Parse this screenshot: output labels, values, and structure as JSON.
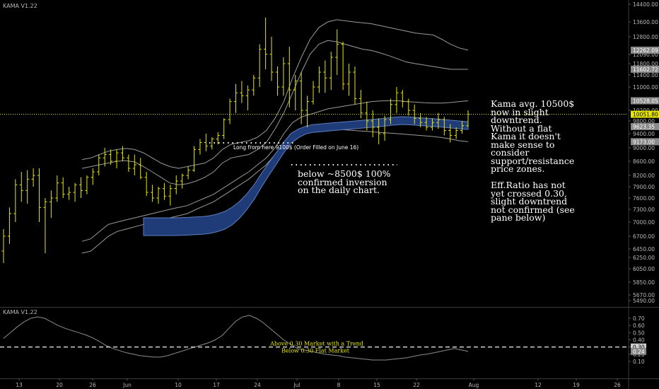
{
  "chart_data": {
    "type": "ohlc",
    "indicator": "KAMA V1.22",
    "price_pane": {
      "title": "KAMA V1.22",
      "y_axis_ticks": [
        14400,
        13600,
        12800,
        12090,
        11800,
        11400,
        11000,
        10200,
        9800,
        9400,
        9000,
        8600,
        8200,
        7900,
        7600,
        7300,
        7000,
        6700,
        6450,
        6250,
        6050,
        5850,
        5670,
        5490
      ],
      "y_axis_tick_labels": [
        "14400.00",
        "13600.00",
        "12800.00",
        "12090.00",
        "11800.00",
        "11400.00",
        "11000.00",
        "10200.00",
        "9800.00",
        "9400.00",
        "9000.00",
        "8600.00",
        "8200.00",
        "7900.00",
        "7600.00",
        "7300.00",
        "7000.00",
        "6700.00",
        "6450.00",
        "6250.00",
        "6050.00",
        "5850.00",
        "5670.00",
        "5490.00"
      ],
      "price_labels": [
        {
          "value": 12262.09,
          "text": "12262.09"
        },
        {
          "value": 11602.72,
          "text": "11602.72"
        },
        {
          "value": 10528.05,
          "text": "10528.05"
        },
        {
          "value": 10051.8,
          "text": "10051.80"
        },
        {
          "value": 9623.35,
          "text": "9623.35"
        },
        {
          "value": 9173.0,
          "text": "9173.00"
        }
      ],
      "current_price": 10051.8,
      "ohlc": [
        [
          6400,
          6850,
          6150,
          6700
        ],
        [
          6700,
          7350,
          6550,
          7200
        ],
        [
          7200,
          8100,
          7000,
          7950
        ],
        [
          7950,
          8300,
          7500,
          7800
        ],
        [
          7800,
          8350,
          7450,
          8100
        ],
        [
          8100,
          8400,
          7900,
          8200
        ],
        [
          8200,
          8400,
          7000,
          7350
        ],
        [
          7350,
          7600,
          6350,
          7500
        ],
        [
          7500,
          7800,
          7100,
          7600
        ],
        [
          7600,
          8200,
          7500,
          8000
        ],
        [
          8000,
          8150,
          7600,
          7700
        ],
        [
          7700,
          7900,
          7550,
          7750
        ],
        [
          7750,
          8000,
          7500,
          7950
        ],
        [
          7950,
          8150,
          7600,
          7800
        ],
        [
          7800,
          8200,
          7700,
          8150
        ],
        [
          8150,
          8400,
          7950,
          8300
        ],
        [
          8300,
          8800,
          8200,
          8700
        ],
        [
          8700,
          9000,
          8450,
          8800
        ],
        [
          8800,
          8950,
          8500,
          8600
        ],
        [
          8600,
          8950,
          8400,
          8850
        ],
        [
          8850,
          9050,
          8600,
          8700
        ],
        [
          8700,
          8800,
          8300,
          8400
        ],
        [
          8400,
          8800,
          8200,
          8500
        ],
        [
          8500,
          8700,
          8100,
          8150
        ],
        [
          8150,
          8300,
          7650,
          7750
        ],
        [
          7750,
          7950,
          7500,
          7600
        ],
        [
          7600,
          7900,
          7450,
          7850
        ],
        [
          7850,
          8000,
          7550,
          7650
        ],
        [
          7650,
          7950,
          7400,
          7850
        ],
        [
          7850,
          8200,
          7700,
          8050
        ],
        [
          8050,
          8250,
          7850,
          8200
        ],
        [
          8200,
          8450,
          8100,
          8350
        ],
        [
          8350,
          9050,
          8300,
          8950
        ],
        [
          8950,
          9250,
          8800,
          9150
        ],
        [
          9150,
          9400,
          8900,
          9050
        ],
        [
          9050,
          9300,
          8950,
          9250
        ],
        [
          9250,
          9450,
          9100,
          9350
        ],
        [
          9350,
          9900,
          9250,
          9850
        ],
        [
          9850,
          10600,
          9700,
          10500
        ],
        [
          10500,
          11100,
          10100,
          10800
        ],
        [
          10800,
          11200,
          10450,
          10700
        ],
        [
          10700,
          11050,
          10200,
          10900
        ],
        [
          10900,
          11400,
          10700,
          11300
        ],
        [
          11300,
          12500,
          11000,
          12300
        ],
        [
          12300,
          13800,
          11600,
          12100
        ],
        [
          12100,
          12800,
          11200,
          11500
        ],
        [
          11500,
          11700,
          10700,
          11000
        ],
        [
          11000,
          12000,
          10700,
          11800
        ],
        [
          11800,
          12400,
          10300,
          10900
        ],
        [
          10900,
          11400,
          10200,
          11200
        ],
        [
          11200,
          11500,
          9700,
          10200
        ],
        [
          10200,
          10700,
          9600,
          10500
        ],
        [
          10500,
          11200,
          10400,
          11000
        ],
        [
          11000,
          11700,
          10800,
          11500
        ],
        [
          11500,
          11900,
          10800,
          11300
        ],
        [
          11300,
          12200,
          10900,
          12000
        ],
        [
          12000,
          13200,
          11400,
          12500
        ],
        [
          12500,
          12600,
          10900,
          11100
        ],
        [
          11100,
          11800,
          10700,
          11500
        ],
        [
          11500,
          11700,
          10400,
          10600
        ],
        [
          10600,
          10900,
          9900,
          10100
        ],
        [
          10100,
          10500,
          9500,
          9800
        ],
        [
          9800,
          10200,
          9300,
          9600
        ],
        [
          9600,
          9900,
          9100,
          9400
        ],
        [
          9400,
          10000,
          9200,
          9850
        ],
        [
          9850,
          10600,
          9700,
          10400
        ],
        [
          10400,
          11000,
          10100,
          10800
        ],
        [
          10800,
          10900,
          10300,
          10500
        ],
        [
          10500,
          10600,
          10000,
          10200
        ],
        [
          10200,
          10400,
          9700,
          9900
        ],
        [
          9900,
          10100,
          9600,
          9750
        ],
        [
          9750,
          9950,
          9500,
          9600
        ],
        [
          9600,
          9900,
          9500,
          9750
        ],
        [
          9750,
          10100,
          9550,
          9850
        ],
        [
          9850,
          9950,
          9350,
          9500
        ],
        [
          9500,
          9700,
          9150,
          9350
        ],
        [
          9350,
          9600,
          9250,
          9500
        ],
        [
          9500,
          9800,
          9400,
          9650
        ],
        [
          9650,
          10200,
          9600,
          10051.8
        ]
      ],
      "kama": [
        7050,
        7050,
        7050,
        7050,
        7050,
        7055,
        7060,
        7070,
        7080,
        7100,
        7140,
        7200,
        7300,
        7450,
        7650,
        7900,
        8200,
        8500,
        8800,
        9100,
        9350,
        9480,
        9570,
        9620,
        9640,
        9660,
        9680,
        9700,
        9720,
        9740,
        9760,
        9780,
        9800,
        9830,
        9860,
        9880,
        9870,
        9850,
        9830,
        9810,
        9790,
        9770,
        9750,
        9730,
        9710
      ],
      "kama_offset_base": 7200,
      "kama_offset": [
        7050,
        7050,
        7050,
        7050,
        7050,
        7055,
        7060,
        7070,
        7080,
        7100,
        7140,
        7200,
        7300,
        7450,
        7650,
        7900,
        8200,
        8500,
        8800,
        9100,
        9350,
        9480,
        9570,
        9620,
        9640,
        9660,
        9680,
        9700,
        9720,
        9740,
        9760,
        9780,
        9800,
        9830,
        9860,
        9880,
        9870,
        9850,
        9830,
        9810,
        9790,
        9770,
        9750,
        9730,
        9710
      ],
      "band_upper_outer": [
        8650,
        8700,
        8800,
        8900,
        8950,
        8980,
        8950,
        8850,
        8700,
        8550,
        8450,
        8400,
        8450,
        8500,
        8550,
        8700,
        8950,
        9100,
        9150,
        9200,
        9300,
        9500,
        9900,
        10500,
        11300,
        12000,
        12700,
        13300,
        13600,
        13700,
        13650,
        13600,
        13550,
        13500,
        13400,
        13300,
        13200,
        13100,
        13000,
        12950,
        12900,
        12700,
        12500,
        12350,
        12262
      ],
      "band_upper_inner": [
        8400,
        8450,
        8500,
        8550,
        8600,
        8620,
        8580,
        8450,
        8300,
        8150,
        8000,
        7950,
        7980,
        8050,
        8150,
        8300,
        8550,
        8700,
        8750,
        8800,
        8950,
        9150,
        9550,
        10100,
        10800,
        11500,
        12100,
        12500,
        12650,
        12600,
        12500,
        12400,
        12300,
        12250,
        12150,
        12050,
        11950,
        11850,
        11800,
        11750,
        11700,
        11650,
        11600,
        11600,
        11600
      ],
      "band_lower_inner": [
        6600,
        6650,
        6800,
        6950,
        7000,
        7050,
        7100,
        7150,
        7200,
        7250,
        7300,
        7350,
        7400,
        7500,
        7600,
        7700,
        7850,
        8000,
        8150,
        8300,
        8500,
        8700,
        9000,
        9400,
        9750,
        9950,
        10050,
        10150,
        10250,
        10300,
        10350,
        10400,
        10450,
        10500,
        10520,
        10530,
        10530,
        10500,
        10480,
        10460,
        10450,
        10450,
        10470,
        10500,
        10528
      ],
      "band_lower_outer": [
        6350,
        6400,
        6550,
        6700,
        6800,
        6850,
        6900,
        6950,
        7000,
        7050,
        7100,
        7150,
        7200,
        7300,
        7400,
        7500,
        7650,
        7800,
        7950,
        8100,
        8300,
        8500,
        8800,
        9100,
        9400,
        9550,
        9600,
        9580,
        9560,
        9540,
        9520,
        9500,
        9480,
        9460,
        9440,
        9420,
        9400,
        9380,
        9360,
        9340,
        9320,
        9290,
        9250,
        9200,
        9173
      ]
    },
    "indicator_pane": {
      "title": "KAMA V1.22",
      "y_axis_ticks": [
        0.7,
        0.6,
        0.5,
        0.4,
        0.3,
        0.2,
        0.1
      ],
      "y_axis_tick_labels": [
        "0.70",
        "0.60",
        "0.50",
        "0.40",
        "0.30",
        "0.20",
        "0.10"
      ],
      "threshold": 0.3,
      "threshold_label": "0.30",
      "current_value": 0.24,
      "current_value_label": "0.24",
      "threshold_text_above": "Above 0.30 Market with a Trend",
      "threshold_text_below": "Below 0.30 Flat Market",
      "efficiency_ratio": [
        0.42,
        0.5,
        0.58,
        0.65,
        0.7,
        0.72,
        0.7,
        0.65,
        0.6,
        0.56,
        0.53,
        0.5,
        0.47,
        0.43,
        0.38,
        0.32,
        0.28,
        0.25,
        0.22,
        0.2,
        0.18,
        0.17,
        0.16,
        0.16,
        0.18,
        0.21,
        0.24,
        0.27,
        0.3,
        0.33,
        0.36,
        0.4,
        0.46,
        0.56,
        0.66,
        0.72,
        0.74,
        0.7,
        0.64,
        0.56,
        0.48,
        0.4,
        0.34,
        0.28,
        0.26,
        0.24,
        0.22,
        0.2,
        0.19,
        0.18,
        0.16,
        0.15,
        0.14,
        0.13,
        0.12,
        0.12,
        0.12,
        0.13,
        0.14,
        0.15,
        0.17,
        0.19,
        0.2,
        0.22,
        0.24,
        0.26,
        0.28,
        0.26,
        0.24
      ]
    },
    "x_axis_labels": [
      "13",
      "20",
      "26",
      "Jun",
      "10",
      "17",
      "24",
      "Jul",
      "8",
      "15",
      "22",
      "Aug",
      "12",
      "19",
      "26"
    ],
    "annotations": [
      {
        "name": "entry-note",
        "text": "Long from here 9100$ (Order Filled on June 16)",
        "price": 9100
      },
      {
        "name": "inversion-note",
        "text": "below ~8500$ 100%\nconfirmed inversion\non the daily chart.",
        "price": 8500
      },
      {
        "name": "kama-note",
        "text": "Kama avg. 10500$\nnow in slight\ndowntrend.\nWithout a flat\nKama it doesn't\nmake sense to\nconsider\nsupport/resistance\nprice zones.\n\nEff.Ratio has not\nyet crossed 0.30,\nslight downtrend\nnot confirmed (see\npane below)"
      }
    ],
    "grid": false,
    "colors": {
      "background": "#000000",
      "bars": "#e6e600",
      "bands": "#9a9a9a",
      "kama_fill": "#1f3c78",
      "current_price_line": "#e6e600",
      "threshold_line": "#d0d0d0",
      "threshold_text": "#e6e600",
      "axis_text": "#b8b8b8"
    }
  }
}
